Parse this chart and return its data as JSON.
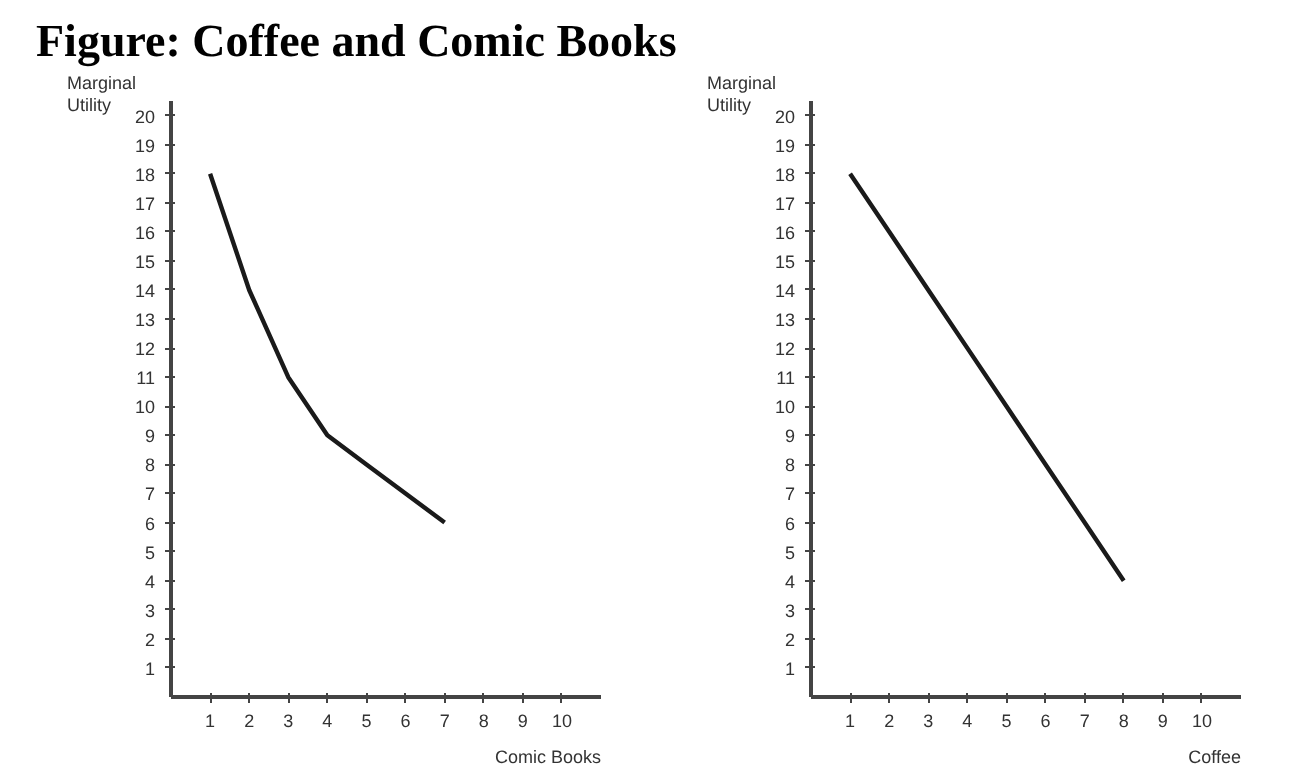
{
  "chart_data": [
    {
      "type": "line",
      "title": "Figure: Coffee and Comic Books",
      "xlabel": "Comic Books",
      "ylabel": "Marginal Utility",
      "x": [
        1,
        2,
        3,
        4,
        5,
        6,
        7
      ],
      "series": [
        {
          "color": "#1a1a1a",
          "values": [
            18,
            14,
            11,
            9,
            8,
            7,
            6
          ]
        }
      ],
      "xlim": [
        0,
        11
      ],
      "ylim": [
        0,
        20.5
      ],
      "xticks": [
        1,
        2,
        3,
        4,
        5,
        6,
        7,
        8,
        9,
        10
      ],
      "yticks": [
        1,
        2,
        3,
        4,
        5,
        6,
        7,
        8,
        9,
        10,
        11,
        12,
        13,
        14,
        15,
        16,
        17,
        18,
        19,
        20
      ],
      "grid": false
    },
    {
      "type": "line",
      "xlabel": "Coffee",
      "ylabel": "Marginal Utility",
      "x": [
        1,
        2,
        3,
        4,
        5,
        6,
        7,
        8
      ],
      "series": [
        {
          "color": "#1a1a1a",
          "values": [
            18,
            16,
            14,
            12,
            10,
            8,
            6,
            4
          ]
        }
      ],
      "xlim": [
        0,
        11
      ],
      "ylim": [
        0,
        20.5
      ],
      "xticks": [
        1,
        2,
        3,
        4,
        5,
        6,
        7,
        8,
        9,
        10
      ],
      "yticks": [
        1,
        2,
        3,
        4,
        5,
        6,
        7,
        8,
        9,
        10,
        11,
        12,
        13,
        14,
        15,
        16,
        17,
        18,
        19,
        20
      ],
      "grid": false
    }
  ]
}
